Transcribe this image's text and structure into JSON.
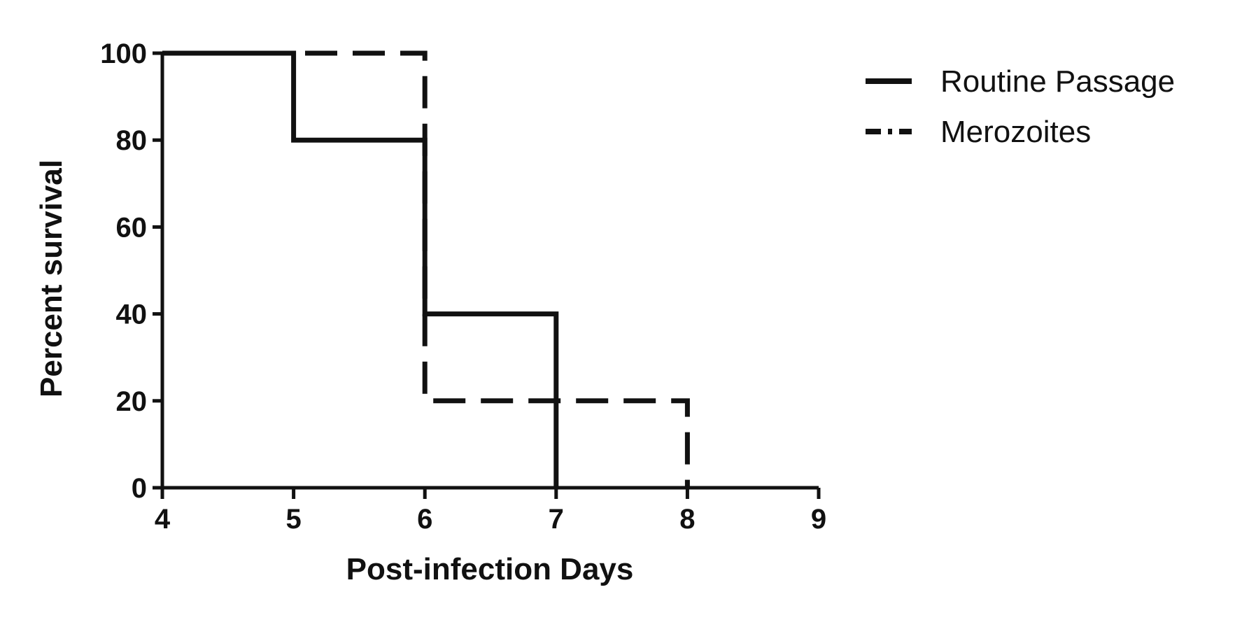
{
  "chart_data": {
    "type": "line",
    "subtype": "step-survival",
    "title": "",
    "xlabel": "Post-infection Days",
    "ylabel": "Percent survival",
    "xlim": [
      4,
      9
    ],
    "ylim": [
      0,
      100
    ],
    "xticks": [
      "4",
      "5",
      "6",
      "7",
      "8",
      "9"
    ],
    "yticks": [
      "0",
      "20",
      "40",
      "60",
      "80",
      "100"
    ],
    "grid": false,
    "legend_position": "top-right",
    "series": [
      {
        "name": "Routine Passage",
        "style": "solid",
        "color": "#111111",
        "x": [
          4,
          5,
          6,
          7
        ],
        "y": [
          100,
          80,
          40,
          0
        ]
      },
      {
        "name": "Merozoites",
        "style": "dashed",
        "color": "#111111",
        "x": [
          4,
          6,
          7,
          8
        ],
        "y": [
          100,
          20,
          20,
          0
        ]
      }
    ]
  }
}
